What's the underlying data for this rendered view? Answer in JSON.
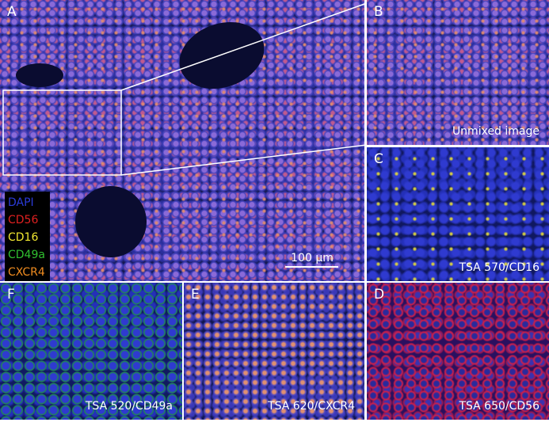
{
  "panels": [
    {
      "letter": "A",
      "caption": null
    },
    {
      "letter": "B",
      "caption": "Unmixed image"
    },
    {
      "letter": "C",
      "caption": "TSA 570/CD16"
    },
    {
      "letter": "D",
      "caption": "TSA 650/CD56"
    },
    {
      "letter": "E",
      "caption": "TSA 620/CXCR4"
    },
    {
      "letter": "F",
      "caption": "TSA 520/CD49a"
    }
  ],
  "legend": [
    {
      "label": "DAPI",
      "color": "#2b3bd8"
    },
    {
      "label": "CD56",
      "color": "#e02020"
    },
    {
      "label": "CD16",
      "color": "#f2e830"
    },
    {
      "label": "CD49a",
      "color": "#30c030"
    },
    {
      "label": "CXCR4",
      "color": "#f08c20"
    }
  ],
  "scale_bar": "100 µm"
}
